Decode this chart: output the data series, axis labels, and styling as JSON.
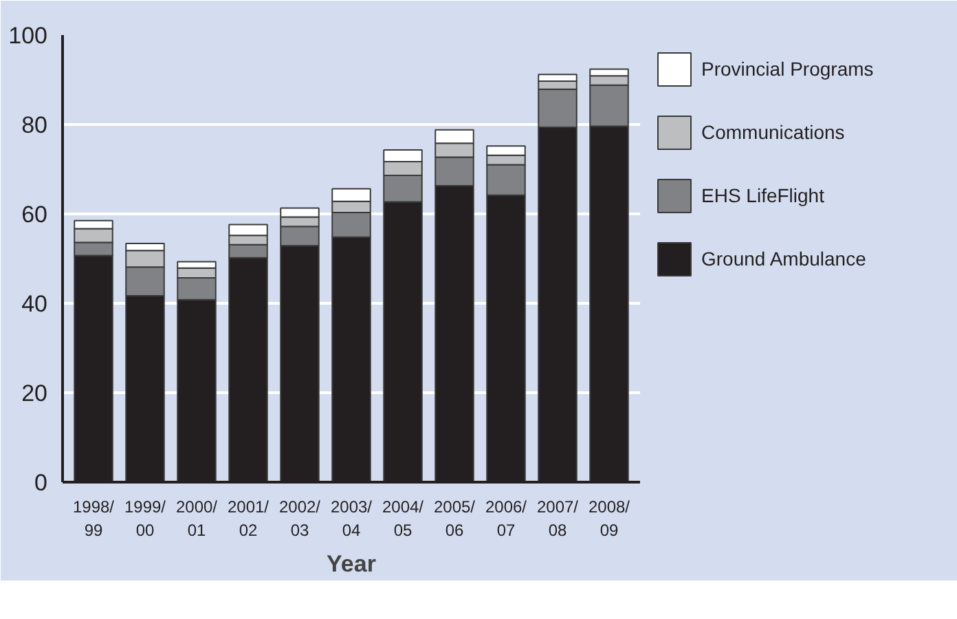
{
  "chart_data": {
    "type": "bar",
    "stacked": true,
    "xlabel": "Year",
    "categories": [
      "1998/99",
      "1999/00",
      "2000/01",
      "2001/02",
      "2002/03",
      "2003/04",
      "2004/05",
      "2005/06",
      "2006/07",
      "2007/08",
      "2008/09"
    ],
    "series": [
      {
        "name": "Ground Ambulance",
        "color": "#231f20",
        "values": [
          50.7,
          41.7,
          40.8,
          50.2,
          52.9,
          54.8,
          62.7,
          66.3,
          64.2,
          79.4,
          79.6
        ]
      },
      {
        "name": "EHS LifeFlight",
        "color": "#808285",
        "values": [
          2.9,
          6.4,
          4.9,
          2.9,
          4.3,
          5.5,
          5.9,
          6.4,
          6.8,
          8.5,
          9.2
        ]
      },
      {
        "name": "Communications",
        "color": "#bcbec0",
        "values": [
          3.1,
          3.7,
          2.2,
          2.1,
          2.1,
          2.5,
          3.1,
          3.1,
          2.1,
          1.8,
          2.1
        ]
      },
      {
        "name": "Provincial Programs",
        "color": "#ffffff",
        "values": [
          1.8,
          1.6,
          1.4,
          2.4,
          2.0,
          2.8,
          2.6,
          3.0,
          2.1,
          1.5,
          1.5
        ]
      }
    ],
    "ylim": [
      0,
      100
    ],
    "yticks": [
      0,
      20,
      40,
      60,
      80,
      100
    ],
    "grid": "y",
    "legend": "right"
  }
}
